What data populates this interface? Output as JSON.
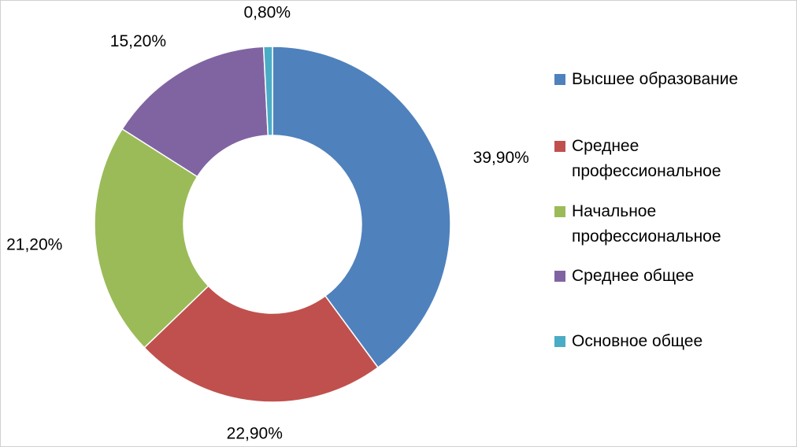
{
  "chart_data": {
    "type": "donut",
    "categories": [
      "Высшее образование",
      "Среднее профессиональное",
      "Начальное профессиональное",
      "Среднее общее",
      "Основное общее"
    ],
    "values": [
      39.9,
      22.9,
      21.2,
      15.2,
      0.8
    ],
    "value_labels": [
      "39,90%",
      "22,90%",
      "21,20%",
      "15,20%",
      "0,80%"
    ],
    "colors": [
      "#4f81bd",
      "#c0504d",
      "#9bbb59",
      "#8064a2",
      "#4bacc6"
    ],
    "legend": "right"
  }
}
